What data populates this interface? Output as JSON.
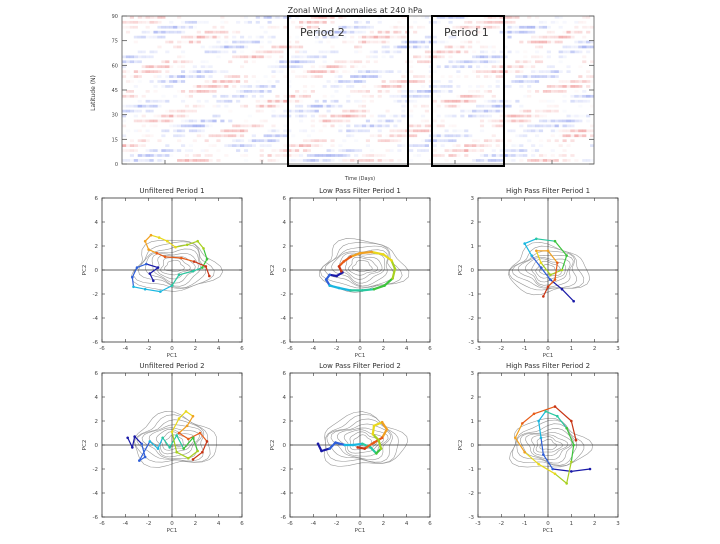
{
  "chart_data": [
    {
      "type": "heatmap",
      "title": "Zonal Wind Anomalies at 240 hPa",
      "xlabel": "Time (Days)",
      "ylabel": "Latitude (N)",
      "ylim": [
        0,
        90
      ],
      "yticks": [
        0,
        15,
        30,
        45,
        60,
        75,
        90
      ],
      "xticks": [
        "",
        "",
        "",
        "",
        ""
      ],
      "box_labels": [
        "Period 2",
        "Period 1"
      ],
      "colors": {
        "positive": "#e86a6a",
        "negative": "#6a7ee8"
      },
      "note": "Time-latitude anomaly field shown as red/blue streaks; boxed regions mark the two analysis periods."
    },
    {
      "type": "line",
      "title": "Unfiltered Period 1",
      "xlabel": "PC1",
      "ylabel": "PC2",
      "xlim": [
        -6,
        6
      ],
      "ylim": [
        -6,
        6
      ],
      "xticks": [
        -6,
        -4,
        -2,
        0,
        2,
        4,
        6
      ],
      "yticks": [
        -6,
        -4,
        -2,
        0,
        2,
        4,
        6
      ],
      "contour_labels": [],
      "trajectory": [
        [
          -1.6,
          -0.9
        ],
        [
          -1.9,
          -0.3
        ],
        [
          -1.2,
          0.2
        ],
        [
          -2.2,
          0.5
        ],
        [
          -3.0,
          0.2
        ],
        [
          -3.4,
          -0.6
        ],
        [
          -3.3,
          -1.4
        ],
        [
          -2.3,
          -1.6
        ],
        [
          -1.0,
          -1.8
        ],
        [
          0.0,
          -1.3
        ],
        [
          0.6,
          -0.4
        ],
        [
          1.8,
          -0.1
        ],
        [
          2.6,
          0.2
        ],
        [
          3.0,
          0.9
        ],
        [
          2.7,
          1.8
        ],
        [
          2.2,
          2.4
        ],
        [
          1.3,
          2.1
        ],
        [
          0.3,
          1.9
        ],
        [
          -0.4,
          2.4
        ],
        [
          -1.1,
          2.7
        ],
        [
          -1.8,
          2.9
        ],
        [
          -2.3,
          2.4
        ],
        [
          -2.0,
          1.7
        ],
        [
          -1.3,
          1.4
        ],
        [
          -0.6,
          1.1
        ],
        [
          0.8,
          1.0
        ],
        [
          1.9,
          0.7
        ],
        [
          2.9,
          0.3
        ],
        [
          3.2,
          -0.5
        ]
      ]
    },
    {
      "type": "line",
      "title": "Low Pass Filter Period 1",
      "xlabel": "PC1",
      "ylabel": "PC2",
      "xlim": [
        -6,
        6
      ],
      "ylim": [
        -6,
        6
      ],
      "xticks": [
        -6,
        -4,
        -2,
        0,
        2,
        4,
        6
      ],
      "yticks": [
        -6,
        -4,
        -2,
        0,
        2,
        4,
        6
      ],
      "contour_labels": [],
      "trajectory": [
        [
          -1.5,
          -0.2
        ],
        [
          -2.0,
          -0.5
        ],
        [
          -2.6,
          -0.4
        ],
        [
          -2.9,
          -0.8
        ],
        [
          -2.6,
          -1.3
        ],
        [
          -1.8,
          -1.5
        ],
        [
          -0.8,
          -1.7
        ],
        [
          0.2,
          -1.7
        ],
        [
          1.2,
          -1.6
        ],
        [
          2.1,
          -1.3
        ],
        [
          2.8,
          -0.7
        ],
        [
          3.0,
          0.1
        ],
        [
          2.7,
          0.8
        ],
        [
          2.0,
          1.3
        ],
        [
          1.0,
          1.5
        ],
        [
          0.0,
          1.4
        ],
        [
          -0.8,
          1.1
        ],
        [
          -1.4,
          0.7
        ],
        [
          -1.8,
          0.3
        ],
        [
          -1.6,
          -0.1
        ]
      ]
    },
    {
      "type": "line",
      "title": "High Pass Filter Period 1",
      "xlabel": "PC1",
      "ylabel": "PC2",
      "xlim": [
        -3,
        3
      ],
      "ylim": [
        -3,
        3
      ],
      "xticks": [
        -3,
        -2,
        -1,
        0,
        1,
        2,
        3
      ],
      "yticks": [
        -3,
        -2,
        -1,
        0,
        1,
        2,
        3
      ],
      "contour_labels": [],
      "trajectory": [
        [
          1.1,
          -1.3
        ],
        [
          0.6,
          -0.8
        ],
        [
          0.1,
          -0.4
        ],
        [
          -0.3,
          0.1
        ],
        [
          -0.7,
          0.6
        ],
        [
          -1.0,
          1.1
        ],
        [
          -0.5,
          1.3
        ],
        [
          0.3,
          1.2
        ],
        [
          0.8,
          0.6
        ],
        [
          0.6,
          0.0
        ],
        [
          0.1,
          -0.2
        ],
        [
          -0.3,
          0.3
        ],
        [
          -0.5,
          0.8
        ],
        [
          0.0,
          0.8
        ],
        [
          0.4,
          0.3
        ],
        [
          0.3,
          -0.4
        ],
        [
          0.0,
          -0.7
        ],
        [
          -0.2,
          -1.1
        ]
      ]
    },
    {
      "type": "line",
      "title": "Unfiltered Period 2",
      "xlabel": "PC1",
      "ylabel": "PC2",
      "xlim": [
        -6,
        6
      ],
      "ylim": [
        -6,
        6
      ],
      "xticks": [
        -6,
        -4,
        -2,
        0,
        2,
        4,
        6
      ],
      "yticks": [
        -6,
        -4,
        -2,
        0,
        2,
        4,
        6
      ],
      "contour_labels": [],
      "trajectory": [
        [
          -3.8,
          0.6
        ],
        [
          -3.4,
          -0.2
        ],
        [
          -3.2,
          0.7
        ],
        [
          -2.6,
          0.1
        ],
        [
          -2.3,
          -1.0
        ],
        [
          -2.8,
          -1.3
        ],
        [
          -1.9,
          0.3
        ],
        [
          -1.2,
          -0.3
        ],
        [
          -0.8,
          0.6
        ],
        [
          -0.2,
          -0.2
        ],
        [
          0.4,
          0.8
        ],
        [
          1.0,
          -0.3
        ],
        [
          1.8,
          0.6
        ],
        [
          2.2,
          -0.5
        ],
        [
          1.4,
          -1.1
        ],
        [
          0.4,
          -0.6
        ],
        [
          0.0,
          1.1
        ],
        [
          0.6,
          2.2
        ],
        [
          1.2,
          2.8
        ],
        [
          1.8,
          2.4
        ],
        [
          1.3,
          1.6
        ],
        [
          0.6,
          1.0
        ],
        [
          1.4,
          0.5
        ],
        [
          2.4,
          1.0
        ],
        [
          3.0,
          0.3
        ],
        [
          2.6,
          -0.6
        ],
        [
          1.8,
          -1.2
        ]
      ]
    },
    {
      "type": "line",
      "title": "Low Pass Filter Period 2",
      "xlabel": "PC1",
      "ylabel": "PC2",
      "xlim": [
        -6,
        6
      ],
      "ylim": [
        -6,
        6
      ],
      "xticks": [
        -6,
        -4,
        -2,
        0,
        2,
        4,
        6
      ],
      "yticks": [
        -6,
        -4,
        -2,
        0,
        2,
        4,
        6
      ],
      "contour_labels": [],
      "trajectory": [
        [
          -3.6,
          0.1
        ],
        [
          -3.3,
          -0.5
        ],
        [
          -2.6,
          -0.3
        ],
        [
          -2.1,
          0.2
        ],
        [
          -1.3,
          0.0
        ],
        [
          -0.6,
          0.0
        ],
        [
          0.2,
          0.1
        ],
        [
          0.9,
          -0.2
        ],
        [
          1.4,
          -0.7
        ],
        [
          1.8,
          -0.3
        ],
        [
          1.6,
          0.4
        ],
        [
          1.1,
          0.9
        ],
        [
          1.2,
          1.6
        ],
        [
          1.9,
          1.9
        ],
        [
          2.3,
          1.3
        ],
        [
          1.9,
          0.6
        ],
        [
          1.2,
          0.2
        ],
        [
          0.4,
          -0.3
        ],
        [
          -0.2,
          -0.2
        ]
      ]
    },
    {
      "type": "line",
      "title": "High Pass Filter Period 2",
      "xlabel": "PC1",
      "ylabel": "PC2",
      "xlim": [
        -3,
        3
      ],
      "ylim": [
        -3,
        3
      ],
      "xticks": [
        -3,
        -2,
        -1,
        0,
        1,
        2,
        3
      ],
      "yticks": [
        -3,
        -2,
        -1,
        0,
        1,
        2,
        3
      ],
      "contour_labels": [],
      "trajectory": [
        [
          1.8,
          -1.0
        ],
        [
          1.0,
          -1.1
        ],
        [
          0.2,
          -1.0
        ],
        [
          -0.2,
          -0.4
        ],
        [
          -0.3,
          0.3
        ],
        [
          -0.4,
          1.0
        ],
        [
          -0.1,
          1.4
        ],
        [
          0.4,
          1.2
        ],
        [
          0.8,
          0.7
        ],
        [
          1.1,
          0.0
        ],
        [
          1.0,
          -0.7
        ],
        [
          0.8,
          -1.6
        ],
        [
          0.3,
          -1.2
        ],
        [
          -0.4,
          -0.8
        ],
        [
          -1.0,
          -0.3
        ],
        [
          -1.4,
          0.3
        ],
        [
          -1.1,
          0.9
        ],
        [
          -0.6,
          1.3
        ],
        [
          0.3,
          1.6
        ],
        [
          1.0,
          1.0
        ],
        [
          1.2,
          0.2
        ]
      ]
    }
  ]
}
